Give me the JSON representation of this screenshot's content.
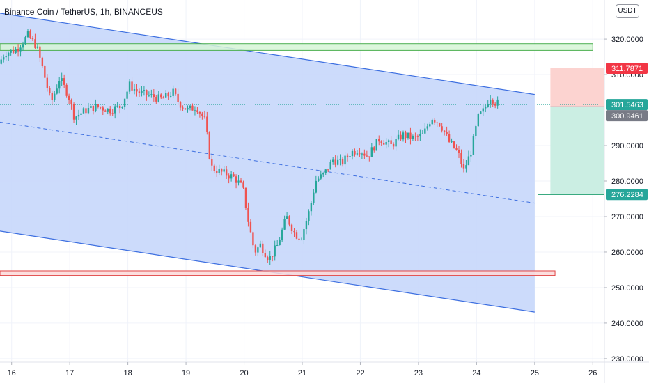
{
  "header": {
    "title": "Binance Coin / TetherUS, 1h, BINANCEUS",
    "currency_button": "USDT"
  },
  "colors": {
    "up": "#26a69a",
    "down": "#ef5350",
    "channel_fill": "#c7d7fb",
    "channel_line": "#3d6fe0",
    "resistance_fill": "#d6f5d6",
    "resistance_line": "#4caf50",
    "support_fill": "#fcd8d8",
    "support_line": "#e04545",
    "target_zone": "#cbeee3",
    "stop_zone": "#fcd3d0",
    "last_price": "#26a69a",
    "entry_price": "#787b86"
  },
  "price_tags": [
    {
      "label": "311.7871",
      "value": 311.7871,
      "color": "#f23645"
    },
    {
      "label": "301.5463",
      "value": 301.5463,
      "color": "#26a69a"
    },
    {
      "label": "300.9461",
      "value": 300.9461,
      "color": "#787b86"
    },
    {
      "label": "276.2284",
      "value": 276.2284,
      "color": "#26a69a"
    }
  ],
  "chart_data": {
    "type": "candlestick",
    "title": "Binance Coin / TetherUS, 1h, BINANCEUS",
    "xlabel": "",
    "ylabel": "",
    "x_domain": [
      15.8,
      26.2
    ],
    "ylim": [
      229,
      331
    ],
    "x_ticks": [
      {
        "value": 16,
        "label": "16"
      },
      {
        "value": 17,
        "label": "17"
      },
      {
        "value": 18,
        "label": "18"
      },
      {
        "value": 19,
        "label": "19"
      },
      {
        "value": 20,
        "label": "20"
      },
      {
        "value": 21,
        "label": "21"
      },
      {
        "value": 22,
        "label": "22"
      },
      {
        "value": 23,
        "label": "23"
      },
      {
        "value": 24,
        "label": "24"
      },
      {
        "value": 25,
        "label": "25"
      },
      {
        "value": 26,
        "label": "26"
      }
    ],
    "y_ticks": [
      {
        "value": 320,
        "label": "320.0000"
      },
      {
        "value": 310,
        "label": "310.0000"
      },
      {
        "value": 290,
        "label": "290.0000"
      },
      {
        "value": 280,
        "label": "280.0000"
      },
      {
        "value": 270,
        "label": "270.0000"
      },
      {
        "value": 260,
        "label": "260.0000"
      },
      {
        "value": 250,
        "label": "250.0000"
      },
      {
        "value": 240,
        "label": "240.0000"
      },
      {
        "value": 230,
        "label": "230.0000"
      }
    ],
    "price_path": [
      [
        15.8,
        313
      ],
      [
        15.9,
        316
      ],
      [
        16.1,
        317
      ],
      [
        16.3,
        321
      ],
      [
        16.45,
        318
      ],
      [
        16.55,
        312
      ],
      [
        16.7,
        302
      ],
      [
        16.85,
        309
      ],
      [
        17.0,
        304
      ],
      [
        17.1,
        298
      ],
      [
        17.3,
        300
      ],
      [
        17.5,
        301
      ],
      [
        17.7,
        300
      ],
      [
        17.9,
        301
      ],
      [
        18.05,
        307
      ],
      [
        18.2,
        305
      ],
      [
        18.4,
        304
      ],
      [
        18.6,
        303
      ],
      [
        18.8,
        305
      ],
      [
        18.9,
        302
      ],
      [
        19.05,
        300
      ],
      [
        19.2,
        301
      ],
      [
        19.35,
        297
      ],
      [
        19.45,
        284
      ],
      [
        19.55,
        283
      ],
      [
        19.7,
        282
      ],
      [
        19.85,
        281
      ],
      [
        20.0,
        278
      ],
      [
        20.1,
        268
      ],
      [
        20.2,
        260
      ],
      [
        20.3,
        262
      ],
      [
        20.45,
        258
      ],
      [
        20.6,
        262
      ],
      [
        20.75,
        270
      ],
      [
        20.9,
        265
      ],
      [
        21.0,
        264
      ],
      [
        21.15,
        272
      ],
      [
        21.25,
        280
      ],
      [
        21.4,
        282
      ],
      [
        21.55,
        286
      ],
      [
        21.7,
        285
      ],
      [
        21.85,
        288
      ],
      [
        22.0,
        289
      ],
      [
        22.15,
        287
      ],
      [
        22.35,
        292
      ],
      [
        22.55,
        290
      ],
      [
        22.75,
        293
      ],
      [
        22.95,
        292
      ],
      [
        23.1,
        293
      ],
      [
        23.25,
        298
      ],
      [
        23.4,
        296
      ],
      [
        23.55,
        291
      ],
      [
        23.7,
        288
      ],
      [
        23.8,
        283
      ],
      [
        23.92,
        288
      ],
      [
        24.05,
        298
      ],
      [
        24.15,
        300
      ],
      [
        24.25,
        304
      ],
      [
        24.35,
        302
      ]
    ],
    "ohlc_note": "",
    "overlays": {
      "channel_upper": [
        [
          15.8,
          327.3
        ],
        [
          25.0,
          304.4
        ]
      ],
      "channel_lower": [
        [
          15.8,
          265.9
        ],
        [
          25.0,
          243.1
        ]
      ],
      "channel_mid": [
        [
          15.8,
          296.6
        ],
        [
          25.0,
          273.8
        ]
      ],
      "resistance_zone": {
        "from_x": 15.8,
        "to_x": 26.0,
        "y_low": 316.8,
        "y_high": 318.7
      },
      "support_zone": {
        "from_x": 15.8,
        "to_x": 25.35,
        "y_low": 253.4,
        "y_high": 254.7
      },
      "position": {
        "from_x": 25.27,
        "to_x": 26.2,
        "entry": 300.9461,
        "stop": 311.7871,
        "target": 276.2284
      },
      "last_price": 301.5463
    }
  }
}
